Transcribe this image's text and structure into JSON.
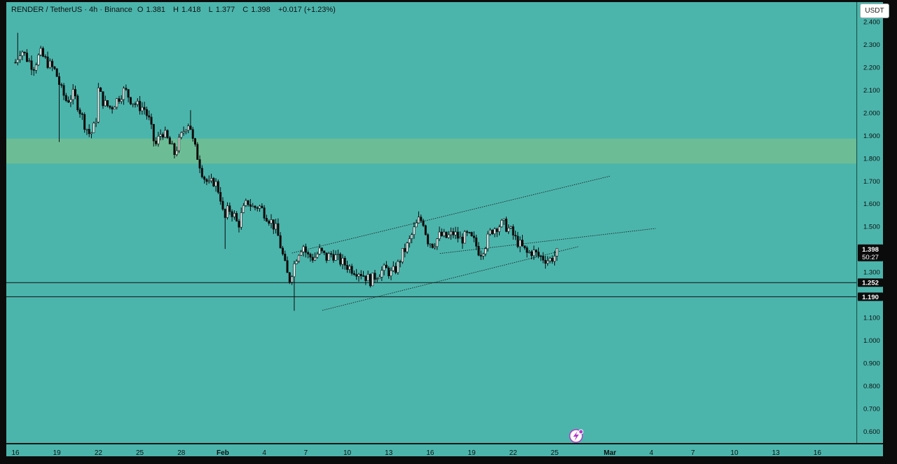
{
  "header": {
    "symbol": "RENDER / TetherUS · 4h · Binance",
    "open_label": "O",
    "open": "1.381",
    "high_label": "H",
    "high": "1.418",
    "low_label": "L",
    "low": "1.377",
    "close_label": "C",
    "close": "1.398",
    "change": "+0.017 (+1.23%)"
  },
  "currency_button": "USDT",
  "price_badges": {
    "last_price": "1.398",
    "countdown": "50:27",
    "level_1": "1.252",
    "level_2": "1.190"
  },
  "colors": {
    "background": "#4bb5ac",
    "zone": "#6cbd95",
    "candle": "#0a0a0a",
    "axis_panel": "#4bb5ac"
  },
  "chart_data": {
    "type": "candlestick",
    "y_ticks": [
      "2.400",
      "2.300",
      "2.200",
      "2.100",
      "2.000",
      "1.900",
      "1.800",
      "1.700",
      "1.600",
      "1.500",
      "1.400",
      "1.300",
      "1.200",
      "1.100",
      "1.000",
      "0.900",
      "0.800",
      "0.700",
      "0.600"
    ],
    "ylim": [
      0.56,
      2.42
    ],
    "x_ticks": [
      {
        "label": "16",
        "day": 16
      },
      {
        "label": "19",
        "day": 19
      },
      {
        "label": "22",
        "day": 22
      },
      {
        "label": "25",
        "day": 25
      },
      {
        "label": "28",
        "day": 28
      },
      {
        "label": "Feb",
        "day": 31
      },
      {
        "label": "4",
        "day": 34
      },
      {
        "label": "7",
        "day": 37
      },
      {
        "label": "10",
        "day": 40
      },
      {
        "label": "13",
        "day": 43
      },
      {
        "label": "16",
        "day": 46
      },
      {
        "label": "19",
        "day": 49
      },
      {
        "label": "22",
        "day": 52
      },
      {
        "label": "25",
        "day": 55
      },
      {
        "label": "Mar",
        "day": 59
      },
      {
        "label": "4",
        "day": 62
      },
      {
        "label": "7",
        "day": 65
      },
      {
        "label": "10",
        "day": 68
      },
      {
        "label": "13",
        "day": 71
      },
      {
        "label": "16",
        "day": 74
      }
    ],
    "horizontal_levels": [
      1.252,
      1.19
    ],
    "supply_zone": [
      1.775,
      1.885
    ],
    "channel_upper": {
      "from": {
        "day": 36.0,
        "price": 1.382
      },
      "to": {
        "day": 59.0,
        "price": 1.72
      }
    },
    "channel_mid": {
      "from": {
        "day": 46.7,
        "price": 1.38
      },
      "to": {
        "day": 62.3,
        "price": 1.49
      }
    },
    "channel_lower": {
      "from": {
        "day": 38.2,
        "price": 1.13
      },
      "to": {
        "day": 56.7,
        "price": 1.41
      }
    },
    "price_path": [
      [
        16.0,
        2.22
      ],
      [
        16.4,
        2.28
      ],
      [
        16.8,
        2.24
      ],
      [
        17.3,
        2.2
      ],
      [
        17.8,
        2.26
      ],
      [
        18.3,
        2.22
      ],
      [
        18.9,
        2.18
      ],
      [
        19.3,
        2.1
      ],
      [
        19.7,
        2.05
      ],
      [
        20.2,
        2.08
      ],
      [
        20.6,
        2.02
      ],
      [
        21.0,
        1.95
      ],
      [
        21.4,
        1.9
      ],
      [
        21.8,
        1.95
      ],
      [
        22.0,
        2.1
      ],
      [
        22.4,
        2.04
      ],
      [
        22.9,
        2.02
      ],
      [
        23.4,
        2.06
      ],
      [
        23.9,
        2.1
      ],
      [
        24.3,
        2.06
      ],
      [
        24.8,
        2.03
      ],
      [
        25.3,
        2.02
      ],
      [
        25.7,
        1.96
      ],
      [
        26.1,
        1.85
      ],
      [
        26.6,
        1.92
      ],
      [
        27.0,
        1.88
      ],
      [
        27.5,
        1.82
      ],
      [
        27.9,
        1.88
      ],
      [
        28.3,
        1.94
      ],
      [
        28.6,
        1.96
      ],
      [
        28.8,
        1.88
      ],
      [
        29.2,
        1.8
      ],
      [
        29.6,
        1.72
      ],
      [
        30.0,
        1.68
      ],
      [
        30.4,
        1.7
      ],
      [
        30.8,
        1.64
      ],
      [
        31.1,
        1.52
      ],
      [
        31.4,
        1.58
      ],
      [
        31.8,
        1.55
      ],
      [
        32.1,
        1.5
      ],
      [
        32.4,
        1.56
      ],
      [
        32.8,
        1.61
      ],
      [
        33.2,
        1.58
      ],
      [
        33.6,
        1.59
      ],
      [
        34.0,
        1.56
      ],
      [
        34.5,
        1.52
      ],
      [
        34.9,
        1.48
      ],
      [
        35.3,
        1.38
      ],
      [
        35.6,
        1.3
      ],
      [
        35.8,
        1.26
      ],
      [
        36.1,
        1.32
      ],
      [
        36.4,
        1.38
      ],
      [
        36.8,
        1.42
      ],
      [
        37.1,
        1.37
      ],
      [
        37.6,
        1.36
      ],
      [
        38.0,
        1.39
      ],
      [
        38.5,
        1.36
      ],
      [
        38.9,
        1.38
      ],
      [
        39.4,
        1.35
      ],
      [
        39.9,
        1.33
      ],
      [
        40.4,
        1.31
      ],
      [
        40.9,
        1.3
      ],
      [
        41.3,
        1.28
      ],
      [
        41.7,
        1.26
      ],
      [
        42.0,
        1.28
      ],
      [
        42.4,
        1.3
      ],
      [
        42.8,
        1.31
      ],
      [
        43.2,
        1.29
      ],
      [
        43.6,
        1.32
      ],
      [
        44.0,
        1.38
      ],
      [
        44.4,
        1.42
      ],
      [
        44.8,
        1.48
      ],
      [
        45.2,
        1.53
      ],
      [
        45.5,
        1.52
      ],
      [
        45.8,
        1.44
      ],
      [
        46.2,
        1.42
      ],
      [
        46.7,
        1.46
      ],
      [
        47.2,
        1.45
      ],
      [
        47.7,
        1.47
      ],
      [
        48.2,
        1.44
      ],
      [
        48.7,
        1.46
      ],
      [
        49.2,
        1.43
      ],
      [
        49.6,
        1.38
      ],
      [
        50.0,
        1.42
      ],
      [
        50.4,
        1.48
      ],
      [
        50.8,
        1.5
      ],
      [
        51.3,
        1.51
      ],
      [
        51.8,
        1.48
      ],
      [
        52.2,
        1.44
      ],
      [
        52.6,
        1.41
      ],
      [
        53.0,
        1.38
      ],
      [
        53.4,
        1.39
      ],
      [
        53.8,
        1.37
      ],
      [
        54.2,
        1.36
      ],
      [
        54.6,
        1.35
      ],
      [
        55.0,
        1.37
      ],
      [
        55.3,
        1.39
      ]
    ]
  }
}
